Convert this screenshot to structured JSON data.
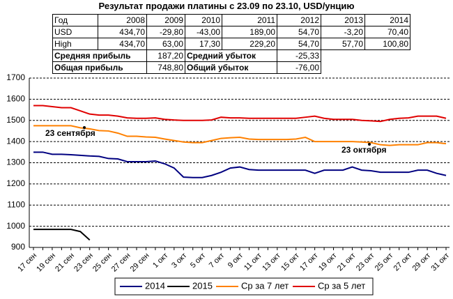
{
  "chart_data": {
    "type": "line",
    "title": "Результат продажи платины с 23.09 по 23.10, USD/унцию",
    "categories": [
      "17 сен",
      null,
      "19 сен",
      null,
      "21 сен",
      null,
      "23 сен",
      null,
      "25 сен",
      null,
      "27 сен",
      null,
      "29 сен",
      null,
      "1 окт",
      null,
      "3 окт",
      null,
      "5 окт",
      null,
      "7 окт",
      null,
      "9 окт",
      null,
      "11 окт",
      null,
      "13 окт",
      null,
      "15 окт",
      null,
      "17 окт",
      null,
      "19 окт",
      null,
      "21 окт",
      null,
      "23 окт",
      null,
      "25 окт",
      null,
      "27 окт",
      null,
      "29 окт",
      null,
      "31 окт"
    ],
    "series": [
      {
        "name": "2014",
        "color": "#000080",
        "values": [
          1350,
          1350,
          1340,
          1340,
          1338,
          1335,
          1332,
          1330,
          1320,
          1318,
          1305,
          1305,
          1305,
          1308,
          1295,
          1275,
          1232,
          1230,
          1230,
          1240,
          1255,
          1275,
          1280,
          1268,
          1265,
          1265,
          1265,
          1265,
          1265,
          1265,
          1250,
          1265,
          1265,
          1265,
          1280,
          1265,
          1262,
          1255,
          1255,
          1255,
          1255,
          1265,
          1265,
          1250,
          1240
        ]
      },
      {
        "name": "2015",
        "color": "#000000",
        "values": [
          985,
          985,
          985,
          985,
          985,
          975,
          935,
          null,
          null,
          null,
          null,
          null,
          null,
          null,
          null,
          null,
          null,
          null,
          null,
          null,
          null,
          null,
          null,
          null,
          null,
          null,
          null,
          null,
          null,
          null,
          null,
          null,
          null,
          null,
          null,
          null,
          null,
          null,
          null,
          null,
          null,
          null,
          null,
          null,
          null
        ]
      },
      {
        "name": "Ср за 7 лет",
        "color": "#ff8000",
        "values": [
          1475,
          1475,
          1475,
          1475,
          1475,
          1465,
          1460,
          1452,
          1450,
          1440,
          1425,
          1425,
          1422,
          1420,
          1412,
          1405,
          1398,
          1395,
          1395,
          1405,
          1415,
          1418,
          1420,
          1412,
          1410,
          1410,
          1410,
          1410,
          1412,
          1420,
          1400,
          1400,
          1400,
          1400,
          1400,
          1398,
          1395,
          1385,
          1382,
          1385,
          1385,
          1385,
          1395,
          1395,
          1390
        ]
      },
      {
        "name": "Ср за 5 лет",
        "color": "#e00000",
        "values": [
          1570,
          1570,
          1565,
          1560,
          1560,
          1545,
          1530,
          1525,
          1525,
          1520,
          1512,
          1510,
          1510,
          1512,
          1505,
          1502,
          1500,
          1500,
          1500,
          1502,
          1515,
          1512,
          1512,
          1510,
          1510,
          1510,
          1510,
          1510,
          1510,
          1515,
          1520,
          1510,
          1505,
          1505,
          1505,
          1500,
          1498,
          1495,
          1505,
          1510,
          1512,
          1520,
          1520,
          1520,
          1510
        ]
      }
    ],
    "annotations": [
      "23 сентября",
      "23 октября"
    ],
    "ylim": [
      900,
      1700
    ],
    "yticks": [
      900,
      1000,
      1100,
      1200,
      1300,
      1400,
      1500,
      1600,
      1700
    ],
    "grid": true,
    "legend": "bottom"
  },
  "table": {
    "header": [
      "Год",
      "2008",
      "2009",
      "2010",
      "2011",
      "2012",
      "2013",
      "2014"
    ],
    "rows": [
      [
        "USD",
        "434,70",
        "-29,80",
        "-43,00",
        "189,00",
        "54,70",
        "-3,20",
        "70,40"
      ],
      [
        "High",
        "434,70",
        "63,00",
        "17,30",
        "229,20",
        "54,70",
        "57,70",
        "100,80"
      ]
    ],
    "summary": [
      [
        "Средняя прибыль",
        "187,20",
        "Средний убыток",
        "-25,33"
      ],
      [
        "Общая прибыль",
        "748,80",
        "Общий убыток",
        "-76,00"
      ]
    ]
  }
}
